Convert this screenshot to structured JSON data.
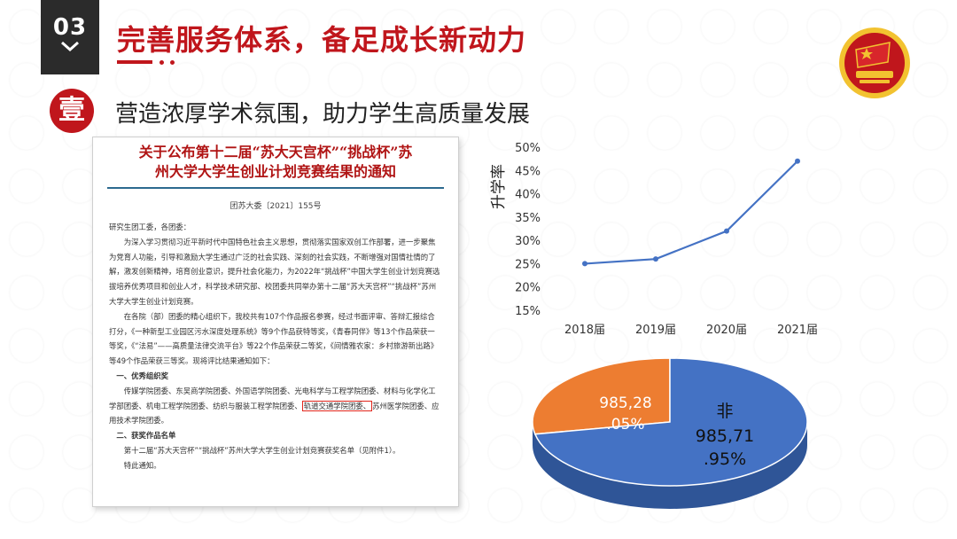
{
  "section": {
    "number": "03",
    "chevron": "❯"
  },
  "title": "完善服务体系，备足成长新动力",
  "subsection": {
    "badge": "壹",
    "title": "营造浓厚学术氛围，助力学生高质量发展"
  },
  "document": {
    "title_line1": "关于公布第十二届“苏大天宫杯”“挑战杯”苏",
    "title_line2": "州大学大学生创业计划竞赛结果的通知",
    "doc_number": "团苏大委〔2021〕155号",
    "salutation": "研究生团工委，各团委：",
    "para1": "为深入学习贯彻习近平新时代中国特色社会主义思想，贯彻落实国家双创工作部署，进一步聚焦为党育人功能，引导和激励大学生通过广泛的社会实践、深刻的社会实践，不断增强对国情社情的了解，激发创新精神，培育创业意识，提升社会化能力，为2022年“挑战杯”中国大学生创业计划竞赛选拔培养优秀项目和创业人才，科学技术研究部、校团委共同举办第十二届“苏大天宫杯”“挑战杯”苏州大学大学生创业计划竞赛。",
    "para2": "在各院（部）团委的精心组织下，我校共有107个作品报名参赛，经过书面评审、答辩汇报综合打分，《一种新型工业园区污水深度处理系统》等9个作品获特等奖，《青春同伴》等13个作品荣获一等奖，《“法易”——高质量法律交流平台》等22个作品荣获二等奖，《间情雅农家：乡村旅游新出路》等49个作品荣获三等奖。现将评比结果通知如下：",
    "section1": "一、优秀组织奖",
    "list1_a": "传媒学院团委、东吴商学院团委、外国语学院团委、光电科学与工程学院团委、材料与化学化工学部团委、机电工程学院团委、纺织与服装工程学院团委、",
    "list1_hl": "轨道交通学院团委、",
    "list1_b": "苏州医学院团委、应用技术学院团委。",
    "section2": "二、获奖作品名单",
    "para3": "第十二届“苏大天宫杯”“挑战杯”苏州大学大学生创业计划竞赛获奖名单（见附件1）。",
    "closing": "特此通知。"
  },
  "line_chart": {
    "ylabel": "升学率",
    "yticks": [
      "50%",
      "45%",
      "40%",
      "35%",
      "30%",
      "25%",
      "20%",
      "15%"
    ]
  },
  "pie_labels": {
    "orange_line1": "985,28",
    "orange_line2": ".05%",
    "blue_line0": "非",
    "blue_line1": "985,71",
    "blue_line2": ".95%"
  },
  "colors": {
    "accent": "#c0161c",
    "line": "#4472c4",
    "pie_blue": "#4472c4",
    "pie_orange": "#ed7d31"
  },
  "chart_data": [
    {
      "type": "line",
      "title": "",
      "ylabel": "升学率",
      "categories": [
        "2018届",
        "2019届",
        "2020届",
        "2021届"
      ],
      "series": [
        {
          "name": "升学率",
          "values": [
            25,
            26,
            32,
            47
          ]
        }
      ],
      "ylim": [
        15,
        50
      ],
      "grid": false
    },
    {
      "type": "pie",
      "categories": [
        "985",
        "非985"
      ],
      "values": [
        28.05,
        71.95
      ]
    }
  ]
}
